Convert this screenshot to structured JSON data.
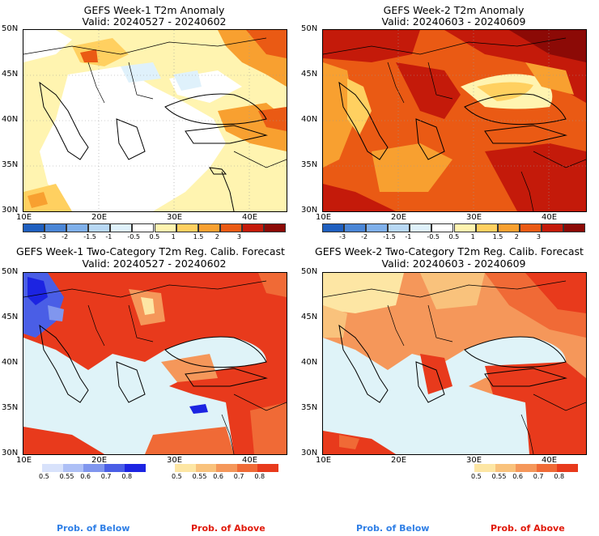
{
  "panels": [
    {
      "title": "GEFS Week-1 T2m Anomaly",
      "valid": "Valid: 20240527 - 20240602",
      "type": "anomaly"
    },
    {
      "title": "GEFS Week-2 T2m Anomaly",
      "valid": "Valid: 20240603 - 20240609",
      "type": "anomaly"
    },
    {
      "title": "GEFS Week-1 Two-Category T2m Reg. Calib. Forecast",
      "valid": "Valid: 20240527 - 20240602",
      "type": "probability"
    },
    {
      "title": "GEFS Week-2 Two-Category T2m Reg. Calib. Forecast",
      "valid": "Valid: 20240603 - 20240609",
      "type": "probability"
    }
  ],
  "axes": {
    "lat_labels": [
      "50N",
      "45N",
      "40N",
      "35N",
      "30N"
    ],
    "lon_labels": [
      "10E",
      "20E",
      "30E",
      "40E"
    ]
  },
  "anomaly_colorbar": {
    "labels": [
      "-3",
      "-2",
      "-1.5",
      "-1",
      "-0.5",
      "0.5",
      "1",
      "1.5",
      "2",
      "3"
    ],
    "colors": [
      "#1f5fbf",
      "#4a86d6",
      "#7fb0ea",
      "#b8d8f4",
      "#dff1fb",
      "#ffffff",
      "#fff4b0",
      "#ffd060",
      "#f8a030",
      "#ea5a14",
      "#c41a0a",
      "#8c0a06"
    ]
  },
  "prob_below_colorbar": {
    "labels": [
      "0.5",
      "0.55",
      "0.6",
      "0.7",
      "0.8"
    ],
    "colors": [
      "#d8e2fb",
      "#aec0f6",
      "#8096ee",
      "#4a5ee6",
      "#1c24e2"
    ]
  },
  "prob_above_colorbar": {
    "labels": [
      "0.5",
      "0.55",
      "0.6",
      "0.7",
      "0.8"
    ],
    "colors": [
      "#fde6a4",
      "#f9c27c",
      "#f5975a",
      "#f06a36",
      "#e83a1c"
    ]
  },
  "prob_legend": {
    "below": "Prob. of Below",
    "above": "Prob. of Above"
  }
}
